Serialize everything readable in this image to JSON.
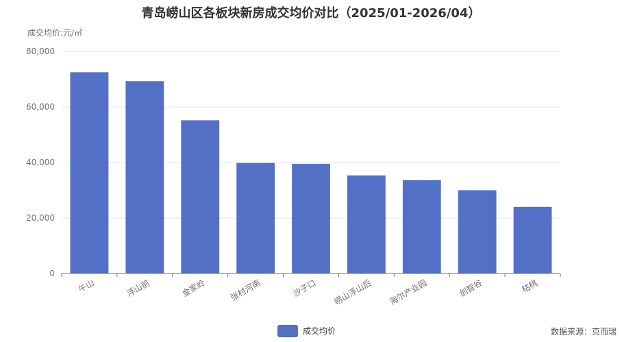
{
  "chart_data": {
    "type": "bar",
    "title": "青岛崂山区各板块新房成交均价对比（2025/01-2026/04）",
    "ylabel": "成交均价:元/㎡",
    "xlabel": "",
    "categories": [
      "午山",
      "浮山前",
      "金家岭",
      "张村河南",
      "沙子口",
      "崂山浮山后",
      "海尔产业园",
      "创智谷",
      "枯桃"
    ],
    "series": [
      {
        "name": "成交均价",
        "values": [
          72500,
          69300,
          55200,
          39800,
          39500,
          35300,
          33600,
          30000,
          24000
        ]
      }
    ],
    "ylim": [
      0,
      80000
    ],
    "yticks": [
      0,
      20000,
      40000,
      60000,
      80000
    ],
    "ytick_labels": [
      "0",
      "20,000",
      "40,000",
      "60,000",
      "80,000"
    ],
    "grid": true,
    "legend_position": "bottom-center",
    "bar_color": "#5470c6"
  },
  "source": "数据来源：克而瑞"
}
